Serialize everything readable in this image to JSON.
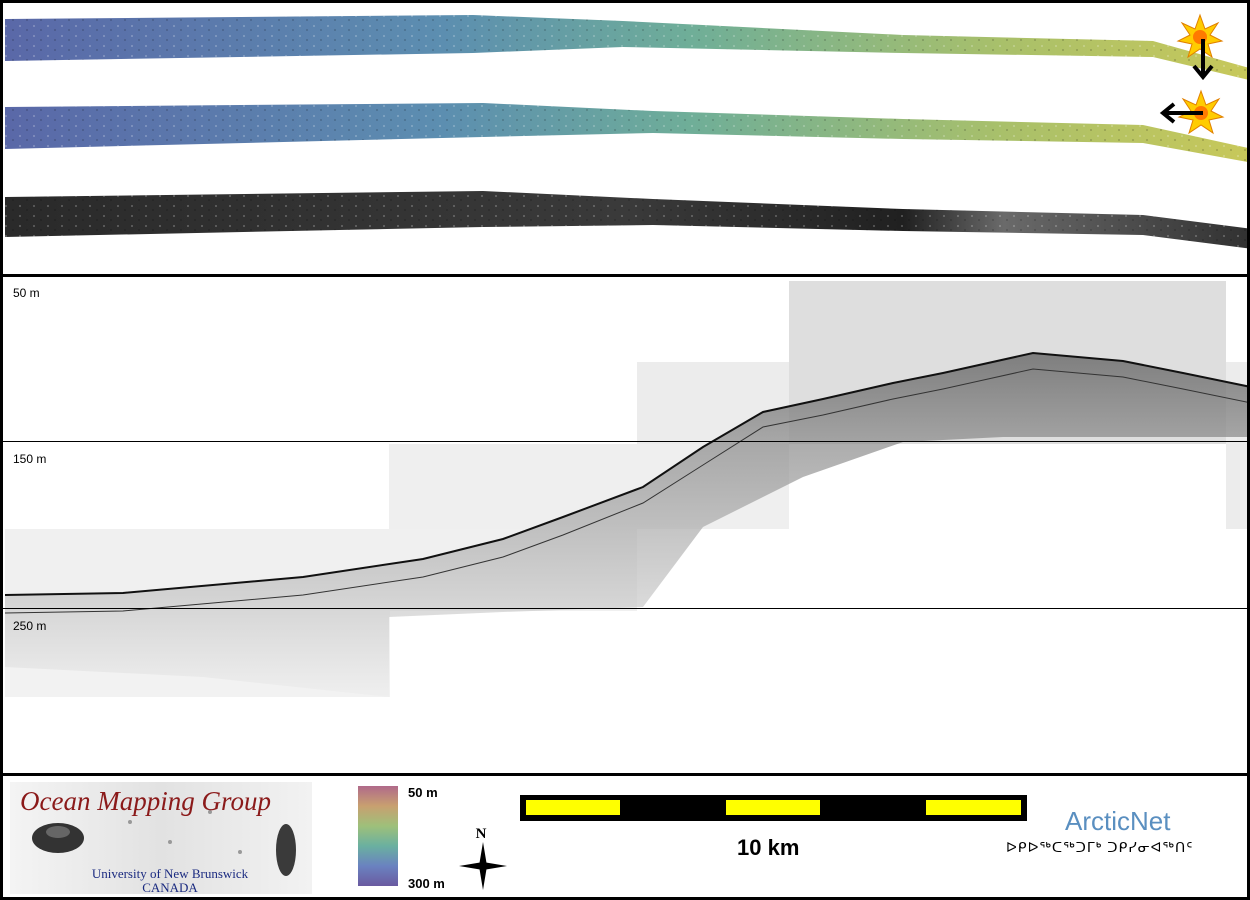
{
  "depth_labels": [
    "50 m",
    "150 m",
    "250 m"
  ],
  "colorbar": {
    "top_label": "50 m",
    "bottom_label": "300 m"
  },
  "scale_bar": {
    "label": "10 km",
    "segments": 5
  },
  "logo_omg": {
    "title": "Ocean Mapping Group",
    "line1": "University of New Brunswick",
    "line2": "CANADA"
  },
  "logo_arcticnet": {
    "title": "ArcticNet",
    "syllabics": "ᐅᑭᐅᖅᑕᖅᑐᒥᒃ ᑐᑭᓯᓂᐊᖅᑎᑦ"
  },
  "north_arrow": {
    "label": "N"
  },
  "colors": {
    "brand_red": "#8b1a1a",
    "arctic_blue": "#5a8fc0",
    "scale_yellow": "#ffff00",
    "sun": "#ffcc00"
  }
}
